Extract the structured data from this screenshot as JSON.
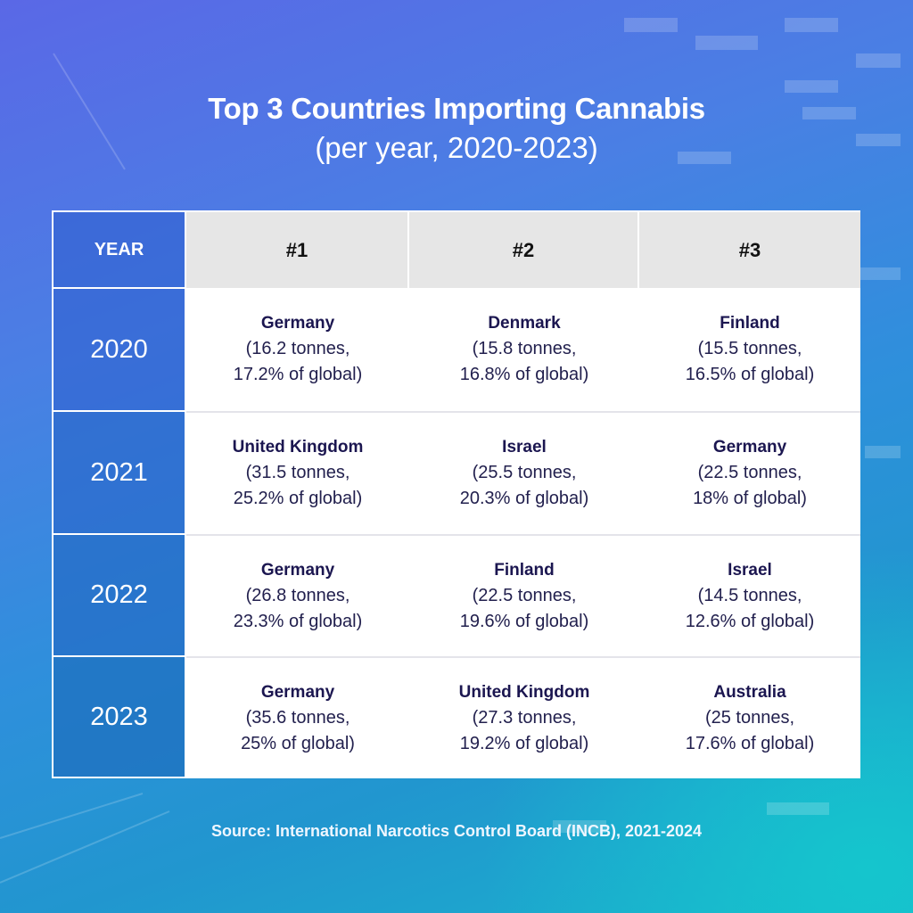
{
  "title": {
    "line1": "Top 3 Countries Importing Cannabis",
    "line2": "(per year, 2020-2023)"
  },
  "table": {
    "headers": [
      "YEAR",
      "#1",
      "#2",
      "#3"
    ],
    "rows": [
      {
        "year": "2020",
        "entries": [
          {
            "country": "Germany",
            "tonnes": "(16.2 tonnes,",
            "share": "17.2% of global)"
          },
          {
            "country": "Denmark",
            "tonnes": "(15.8 tonnes,",
            "share": "16.8% of global)"
          },
          {
            "country": "Finland",
            "tonnes": "(15.5 tonnes,",
            "share": "16.5% of global)"
          }
        ]
      },
      {
        "year": "2021",
        "entries": [
          {
            "country": "United Kingdom",
            "tonnes": "(31.5 tonnes,",
            "share": "25.2% of global)"
          },
          {
            "country": "Israel",
            "tonnes": "(25.5 tonnes,",
            "share": "20.3% of global)"
          },
          {
            "country": "Germany",
            "tonnes": "(22.5 tonnes,",
            "share": "18% of global)"
          }
        ]
      },
      {
        "year": "2022",
        "entries": [
          {
            "country": "Germany",
            "tonnes": "(26.8 tonnes,",
            "share": "23.3% of global)"
          },
          {
            "country": "Finland",
            "tonnes": "(22.5 tonnes,",
            "share": "19.6% of global)"
          },
          {
            "country": "Israel",
            "tonnes": "(14.5 tonnes,",
            "share": "12.6% of global)"
          }
        ]
      },
      {
        "year": "2023",
        "entries": [
          {
            "country": "Germany",
            "tonnes": "(35.6 tonnes,",
            "share": "25% of global)"
          },
          {
            "country": "United Kingdom",
            "tonnes": "(27.3 tonnes,",
            "share": "19.2% of global)"
          },
          {
            "country": "Australia",
            "tonnes": "(25 tonnes,",
            "share": "17.6% of global)"
          }
        ]
      }
    ]
  },
  "source": "Source: International Narcotics Control Board (INCB), 2021-2024",
  "colors": {
    "background_top_left": "#5a68e6",
    "background_bottom_right": "#14c0cc",
    "header_cell": "#e6e6e6",
    "country_text": "#1b1650",
    "title_text": "#ffffff"
  }
}
